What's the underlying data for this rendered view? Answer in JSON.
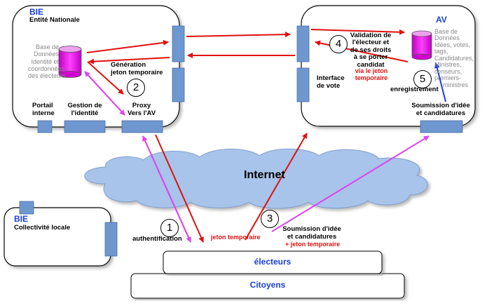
{
  "bie_national": {
    "title": "BIE",
    "subtitle": "Entité Nationale",
    "db_lines": [
      "Base de",
      "Données",
      "Identité et",
      "coordonnées",
      "des électeurs"
    ],
    "generation_lines": [
      "Génération",
      "jeton temporaire"
    ],
    "portail_lines": [
      "Portail",
      "interne"
    ],
    "gestion_lines": [
      "Gestion de",
      "l'identité"
    ],
    "proxy_lines": [
      "Proxy",
      "Vers l'AV"
    ]
  },
  "av": {
    "title": "AV",
    "db_lines": [
      "Base de",
      "Données",
      "Idées, votes,",
      "tags,",
      "Candidatures,",
      "Ministres,",
      "censeurs,",
      "premiers-",
      "ministres"
    ],
    "validation_lines": [
      "Validation de",
      "l'électeur et",
      "de ses droits",
      "à  se porter",
      "candidat"
    ],
    "via_jeton_lines": [
      "via le jeton",
      "temporaire"
    ],
    "interface_lines": [
      "Interface",
      "de vote"
    ],
    "enregistrement": "enregistrement",
    "soumission_lines": [
      "Soumission d'idée",
      "et candidatures"
    ]
  },
  "internet_label": "Internet",
  "bie_local": {
    "title": "BIE",
    "subtitle": "Collectivité locale"
  },
  "bottom": {
    "authentification": "authentification",
    "jeton_temporaire": "jeton temporaire",
    "soumission_lines": [
      "Soumission d'idée",
      "et candidatures"
    ],
    "plus_jeton": "+ jeton temporaire",
    "electeurs": "électeurs",
    "citoyens": "Citoyens"
  },
  "steps": [
    "1",
    "2",
    "3",
    "4",
    "5"
  ],
  "colors": {
    "red_arrow": "#e01010",
    "violet_arrow": "#dd44ee",
    "blue_arrow": "#1a3fd8",
    "port_blue": "#6f97cf",
    "db_magenta": "#ee00ee",
    "cloud_blue": "#a8c4ea"
  }
}
